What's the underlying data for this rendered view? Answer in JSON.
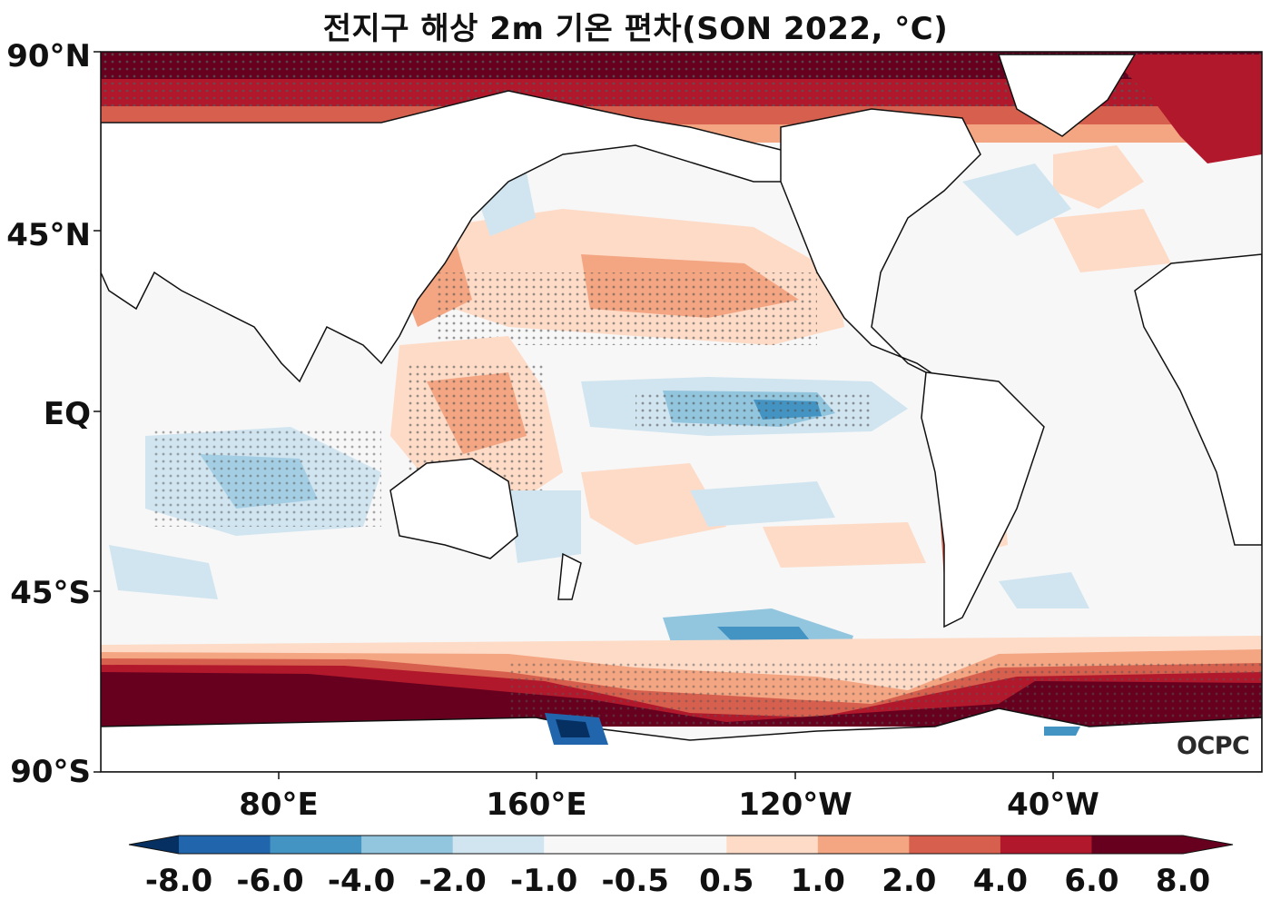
{
  "title": "전지구 해상 2m 기온 편차(SON 2022, °C)",
  "logo": "OCPC",
  "y_axis": {
    "labels": [
      "90°N",
      "45°N",
      "EQ",
      "45°S",
      "90°S"
    ]
  },
  "x_axis": {
    "labels": [
      "80°E",
      "160°E",
      "120°W",
      "40°W"
    ]
  },
  "colorbar": {
    "labels": [
      "-8.0",
      "-6.0",
      "-4.0",
      "-2.0",
      "-1.0",
      "-0.5",
      "0.5",
      "1.0",
      "2.0",
      "4.0",
      "6.0",
      "8.0"
    ],
    "colors": [
      "#053061",
      "#2166ac",
      "#4393c3",
      "#92c5de",
      "#d1e5f0",
      "#f7f7f7",
      "#f7f7f7",
      "#fddbc7",
      "#f4a582",
      "#d6604d",
      "#b2182b",
      "#67001f",
      "#67001f"
    ]
  },
  "colors": {
    "land": "#ffffff",
    "ocean_neutral": "#f7f7f7",
    "stipple": "#555555",
    "coast": "#111111"
  }
}
